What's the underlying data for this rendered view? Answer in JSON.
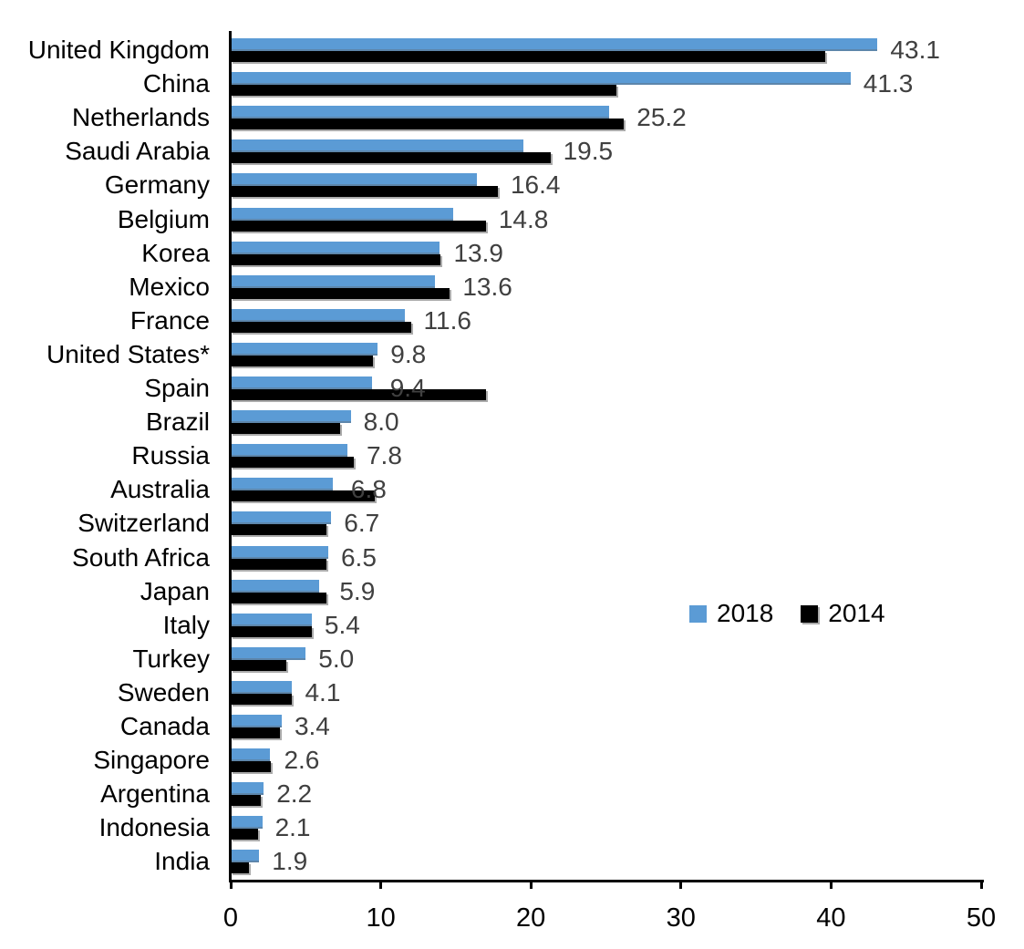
{
  "chart_data": {
    "type": "bar",
    "orientation": "horizontal",
    "categories": [
      "United Kingdom",
      "China",
      "Netherlands",
      "Saudi Arabia",
      "Germany",
      "Belgium",
      "Korea",
      "Mexico",
      "France",
      "United States*",
      "Spain",
      "Brazil",
      "Russia",
      "Australia",
      "Switzerland",
      "South Africa",
      "Japan",
      "Italy",
      "Turkey",
      "Sweden",
      "Canada",
      "Singapore",
      "Argentina",
      "Indonesia",
      "India"
    ],
    "series": [
      {
        "name": "2018",
        "color": "#5B9BD5",
        "values": [
          43.1,
          41.3,
          25.2,
          19.5,
          16.4,
          14.8,
          13.9,
          13.6,
          11.6,
          9.8,
          9.4,
          8.0,
          7.8,
          6.8,
          6.7,
          6.5,
          5.9,
          5.4,
          5.0,
          4.1,
          3.4,
          2.6,
          2.2,
          2.1,
          1.9
        ]
      },
      {
        "name": "2014",
        "color": "#000000",
        "values": [
          39.6,
          25.7,
          26.2,
          21.3,
          17.8,
          17.0,
          14.0,
          14.6,
          12.0,
          9.5,
          17.0,
          7.3,
          8.2,
          9.6,
          6.4,
          6.4,
          6.4,
          5.4,
          3.7,
          4.1,
          3.3,
          2.7,
          2.0,
          1.8,
          1.2
        ]
      }
    ],
    "data_labels": {
      "series": "2018",
      "color": "#404040",
      "values": [
        "43.1",
        "41.3",
        "25.2",
        "19.5",
        "16.4",
        "14.8",
        "13.9",
        "13.6",
        "11.6",
        "9.8",
        "9.4",
        "8.0",
        "7.8",
        "6.8",
        "6.7",
        "6.5",
        "5.9",
        "5.4",
        "5.0",
        "4.1",
        "3.4",
        "2.6",
        "2.2",
        "2.1",
        "1.9"
      ]
    },
    "xlim": [
      0,
      50
    ],
    "x_ticks": [
      "0",
      "10",
      "20",
      "30",
      "40",
      "50"
    ],
    "legend": {
      "position": "center-right",
      "entries": [
        {
          "label": "2018",
          "color": "#5B9BD5"
        },
        {
          "label": "2014",
          "color": "#000000"
        }
      ]
    },
    "grid": false,
    "axis_color": "#000000"
  }
}
